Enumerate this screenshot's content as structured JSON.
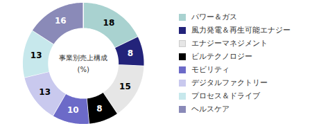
{
  "chart_data": {
    "type": "pie",
    "title": "事業別売上構成",
    "subtitle": "(%)",
    "categories": [
      "パワー＆ガス",
      "風力発電＆再生可能エナジー",
      "エナジーマネジメント",
      "ビルテクノロジー",
      "モビリティ",
      "デジタルファクトリー",
      "プロセス＆ドライブ",
      "ヘルスケア"
    ],
    "values": [
      18,
      8,
      15,
      8,
      10,
      13,
      13,
      16
    ],
    "colors": [
      "#a9d2d0",
      "#23237a",
      "#e6e6e6",
      "#000000",
      "#6c6ac8",
      "#c9c9ee",
      "#c7e8ec",
      "#8a8ab8"
    ],
    "data_labels": true,
    "legend": "right"
  }
}
